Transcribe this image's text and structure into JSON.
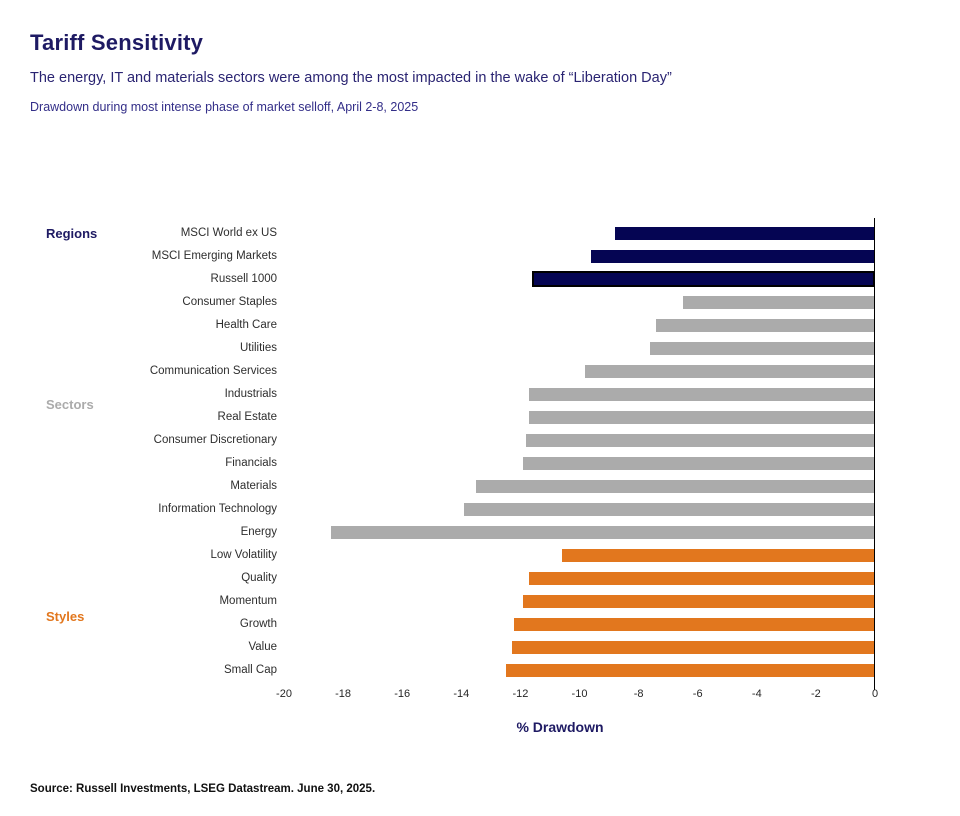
{
  "header": {
    "title": "Tariff Sensitivity",
    "subtitle": "The energy, IT and materials sectors were among the most impacted in the wake of “Liberation Day”",
    "caption": "Drawdown during most intense phase of market selloff, April 2-8, 2025"
  },
  "chart_data": {
    "type": "bar",
    "orientation": "horizontal",
    "title": "Tariff Sensitivity",
    "xlabel": "% Drawdown",
    "ylabel": "",
    "xlim": [
      -20,
      0
    ],
    "xticks": [
      -20,
      -18,
      -16,
      -14,
      -12,
      -10,
      -8,
      -6,
      -4,
      -2,
      0
    ],
    "grid": false,
    "legend": "none",
    "groups": [
      {
        "name": "Regions",
        "color": "#050553",
        "label_color": "#1E1A63"
      },
      {
        "name": "Sectors",
        "color": "#ABABAB",
        "label_color": "#ABABAB"
      },
      {
        "name": "Styles",
        "color": "#E2771E",
        "label_color": "#E2771E"
      }
    ],
    "highlight_border_color": "#000000",
    "bars": [
      {
        "category": "MSCI World ex US",
        "value": -8.8,
        "group": "Regions",
        "highlighted": false
      },
      {
        "category": "MSCI Emerging Markets",
        "value": -9.6,
        "group": "Regions",
        "highlighted": false
      },
      {
        "category": "Russell 1000",
        "value": -11.6,
        "group": "Regions",
        "highlighted": true
      },
      {
        "category": "Consumer Staples",
        "value": -6.5,
        "group": "Sectors",
        "highlighted": false
      },
      {
        "category": "Health Care",
        "value": -7.4,
        "group": "Sectors",
        "highlighted": false
      },
      {
        "category": "Utilities",
        "value": -7.6,
        "group": "Sectors",
        "highlighted": false
      },
      {
        "category": "Communication Services",
        "value": -9.8,
        "group": "Sectors",
        "highlighted": false
      },
      {
        "category": "Industrials",
        "value": -11.7,
        "group": "Sectors",
        "highlighted": false
      },
      {
        "category": "Real Estate",
        "value": -11.7,
        "group": "Sectors",
        "highlighted": false
      },
      {
        "category": "Consumer Discretionary",
        "value": -11.8,
        "group": "Sectors",
        "highlighted": false
      },
      {
        "category": "Financials",
        "value": -11.9,
        "group": "Sectors",
        "highlighted": false
      },
      {
        "category": "Materials",
        "value": -13.5,
        "group": "Sectors",
        "highlighted": false
      },
      {
        "category": "Information Technology",
        "value": -13.9,
        "group": "Sectors",
        "highlighted": false
      },
      {
        "category": "Energy",
        "value": -18.4,
        "group": "Sectors",
        "highlighted": false
      },
      {
        "category": "Low Volatility",
        "value": -10.6,
        "group": "Styles",
        "highlighted": false
      },
      {
        "category": "Quality",
        "value": -11.7,
        "group": "Styles",
        "highlighted": false
      },
      {
        "category": "Momentum",
        "value": -11.9,
        "group": "Styles",
        "highlighted": false
      },
      {
        "category": "Growth",
        "value": -12.2,
        "group": "Styles",
        "highlighted": false
      },
      {
        "category": "Value",
        "value": -12.3,
        "group": "Styles",
        "highlighted": false
      },
      {
        "category": "Small Cap",
        "value": -12.5,
        "group": "Styles",
        "highlighted": false
      }
    ],
    "group_label_positions": {
      "Regions": 234,
      "Sectors": 405,
      "Styles": 617
    }
  },
  "footer": {
    "source": "Source: Russell Investments, LSEG Datastream. June 30, 2025."
  }
}
